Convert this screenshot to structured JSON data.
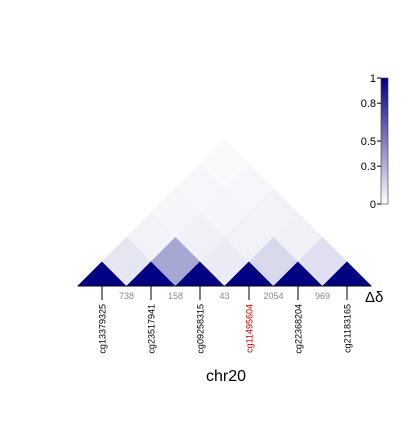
{
  "chart_data": {
    "type": "heatmap",
    "title": "",
    "xlabel": "chr20",
    "ylabel": "",
    "probes": [
      "cg13379325",
      "cg23517941",
      "cg09258315",
      "cg11495604",
      "cg22368204",
      "cg21183165"
    ],
    "highlighted_probe": "cg11495604",
    "gap_labels": [
      "738",
      "158",
      "43",
      "2054",
      "969"
    ],
    "gap_axis_label": "Δδ",
    "matrix": [
      [
        1.0,
        0.1,
        0.05,
        0.04,
        0.03,
        0.02
      ],
      [
        0.1,
        1.0,
        0.35,
        0.06,
        0.04,
        0.03
      ],
      [
        0.05,
        0.35,
        1.0,
        0.08,
        0.05,
        0.05
      ],
      [
        0.04,
        0.06,
        0.08,
        1.0,
        0.15,
        0.06
      ],
      [
        0.03,
        0.04,
        0.05,
        0.15,
        1.0,
        0.12
      ],
      [
        0.02,
        0.03,
        0.05,
        0.06,
        0.12,
        1.0
      ]
    ],
    "colorbar": {
      "min": 0,
      "max": 1,
      "ticks": [
        "0",
        "0.3",
        "0.5",
        "0.8",
        "1"
      ],
      "tick_values": [
        0,
        0.3,
        0.5,
        0.8,
        1
      ],
      "low_color": "#ffffff",
      "high_color": "#000080"
    },
    "colors": {
      "highlight_label": "#cc0000",
      "probe_label": "#000000",
      "gap_label": "#888888"
    }
  }
}
